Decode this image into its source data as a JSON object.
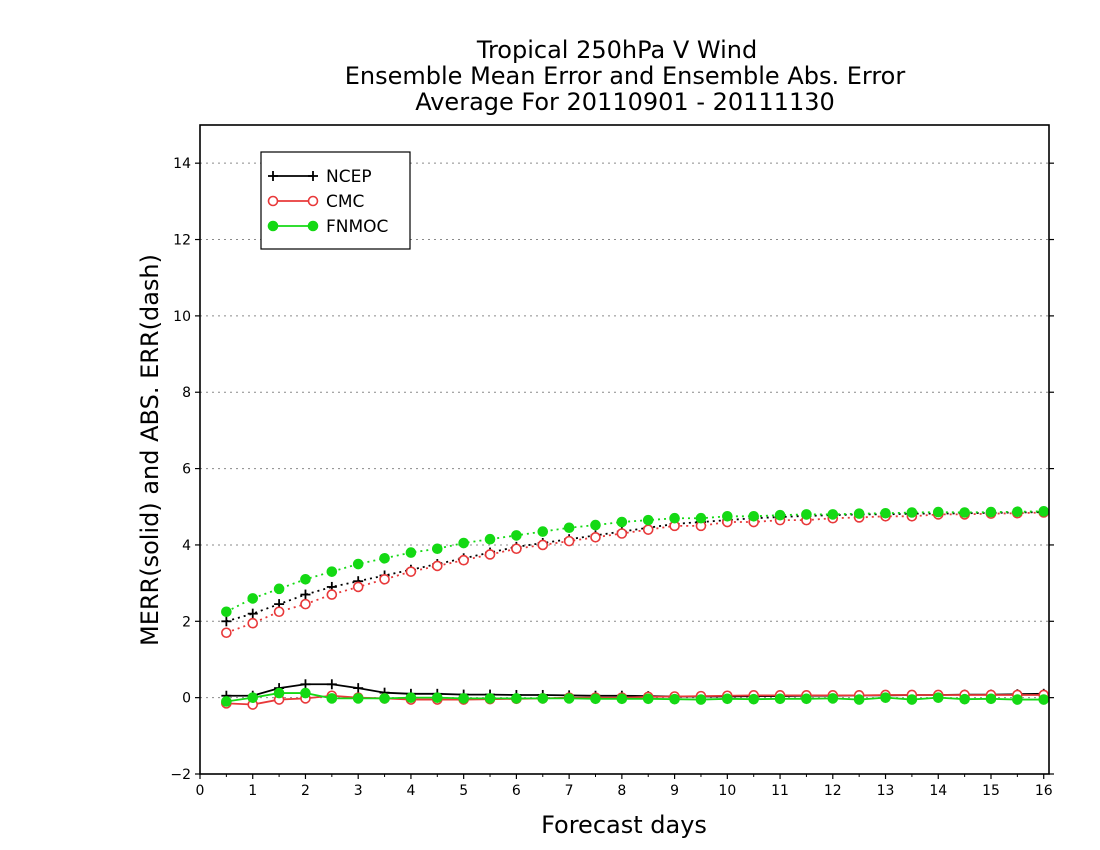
{
  "chart_data": {
    "type": "line",
    "title_lines": [
      "Tropical 250hPa V Wind",
      "Ensemble Mean Error and Ensemble Abs. Error",
      "Average For 20110901 - 20111130"
    ],
    "xlabel": "Forecast days",
    "ylabel": "MERR(solid) and ABS. ERR(dash)",
    "xlim": [
      0,
      16.1
    ],
    "ylim": [
      -2,
      15
    ],
    "x_ticks": [
      0,
      1,
      2,
      3,
      4,
      5,
      6,
      7,
      8,
      9,
      10,
      11,
      12,
      13,
      14,
      15,
      16
    ],
    "y_ticks": [
      -2,
      0,
      2,
      4,
      6,
      8,
      10,
      12,
      14
    ],
    "grid": "horizontal dotted",
    "legend_position": "top-left",
    "x": [
      0.5,
      1,
      1.5,
      2,
      2.5,
      3,
      3.5,
      4,
      4.5,
      5,
      5.5,
      6,
      6.5,
      7,
      7.5,
      8,
      8.5,
      9,
      9.5,
      10,
      10.5,
      11,
      11.5,
      12,
      12.5,
      13,
      13.5,
      14,
      14.5,
      15,
      15.5,
      16
    ],
    "series": [
      {
        "name": "NCEP",
        "color": "#000000",
        "marker": "plus",
        "mean_error": [
          0.05,
          0.05,
          0.25,
          0.35,
          0.35,
          0.25,
          0.13,
          0.1,
          0.1,
          0.08,
          0.08,
          0.07,
          0.07,
          0.06,
          0.05,
          0.05,
          0.04,
          0.03,
          0.03,
          0.03,
          0.04,
          0.04,
          0.05,
          0.05,
          0.06,
          0.06,
          0.07,
          0.07,
          0.08,
          0.08,
          0.09,
          0.1
        ],
        "abs_error": [
          2.0,
          2.2,
          2.45,
          2.7,
          2.9,
          3.05,
          3.2,
          3.35,
          3.5,
          3.65,
          3.8,
          3.95,
          4.05,
          4.15,
          4.25,
          4.35,
          4.45,
          4.55,
          4.6,
          4.65,
          4.7,
          4.73,
          4.76,
          4.78,
          4.8,
          4.8,
          4.82,
          4.82,
          4.83,
          4.84,
          4.85,
          4.86
        ]
      },
      {
        "name": "CMC",
        "color": "#e8393a",
        "marker": "open-circle",
        "mean_error": [
          -0.15,
          -0.18,
          -0.05,
          -0.02,
          0.05,
          0.0,
          -0.02,
          -0.05,
          -0.05,
          -0.05,
          -0.04,
          -0.03,
          -0.02,
          0.0,
          0.0,
          0.0,
          0.02,
          0.03,
          0.04,
          0.05,
          0.06,
          0.06,
          0.06,
          0.06,
          0.06,
          0.07,
          0.07,
          0.07,
          0.07,
          0.07,
          0.07,
          0.07
        ],
        "abs_error": [
          1.7,
          1.95,
          2.25,
          2.45,
          2.7,
          2.9,
          3.1,
          3.3,
          3.45,
          3.6,
          3.75,
          3.9,
          4.0,
          4.1,
          4.2,
          4.3,
          4.4,
          4.5,
          4.5,
          4.6,
          4.6,
          4.65,
          4.65,
          4.7,
          4.72,
          4.75,
          4.75,
          4.8,
          4.8,
          4.82,
          4.83,
          4.85
        ]
      },
      {
        "name": "FNMOC",
        "color": "#14d914",
        "marker": "filled-circle",
        "mean_error": [
          -0.1,
          0.0,
          0.12,
          0.12,
          -0.02,
          -0.02,
          -0.02,
          0.0,
          0.0,
          -0.02,
          -0.02,
          -0.02,
          -0.02,
          -0.02,
          -0.03,
          -0.03,
          -0.03,
          -0.04,
          -0.05,
          -0.03,
          -0.04,
          -0.03,
          -0.03,
          -0.02,
          -0.05,
          0.0,
          -0.05,
          0.0,
          -0.04,
          -0.03,
          -0.05,
          -0.05
        ],
        "abs_error": [
          2.25,
          2.6,
          2.85,
          3.1,
          3.3,
          3.5,
          3.65,
          3.8,
          3.9,
          4.05,
          4.15,
          4.25,
          4.35,
          4.45,
          4.52,
          4.6,
          4.65,
          4.7,
          4.7,
          4.75,
          4.75,
          4.78,
          4.8,
          4.8,
          4.82,
          4.83,
          4.85,
          4.86,
          4.85,
          4.86,
          4.87,
          4.88
        ]
      }
    ]
  }
}
